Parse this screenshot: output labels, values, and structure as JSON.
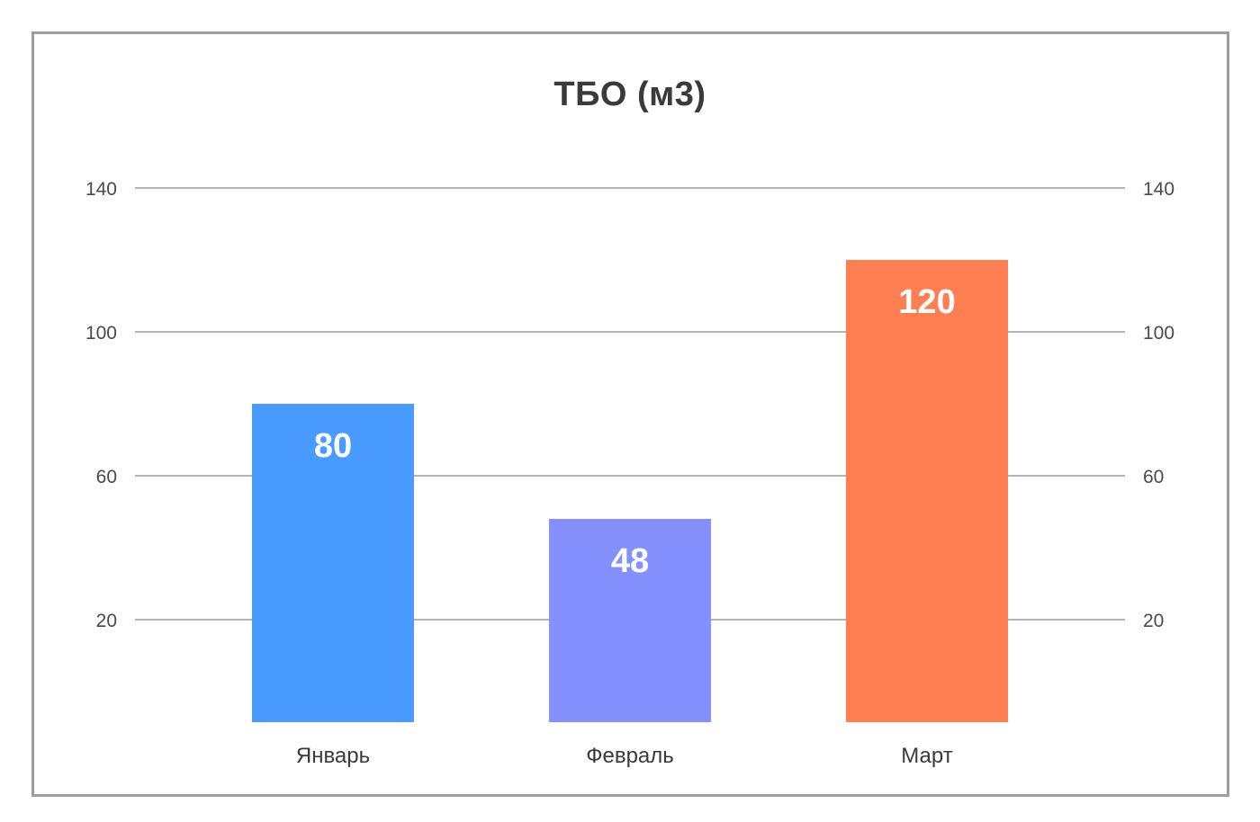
{
  "chart_data": {
    "type": "bar",
    "title": "ТБО (м3)",
    "categories": [
      "Январь",
      "Февраль",
      "Март"
    ],
    "values": [
      80,
      48,
      120
    ],
    "bar_colors": [
      "#4a9bff",
      "#8590ff",
      "#ff7e52"
    ],
    "yticks": [
      20,
      60,
      100,
      140
    ],
    "ylim": [
      0,
      140
    ],
    "grid": true,
    "legend": "none",
    "xlabel": "",
    "ylabel": ""
  }
}
